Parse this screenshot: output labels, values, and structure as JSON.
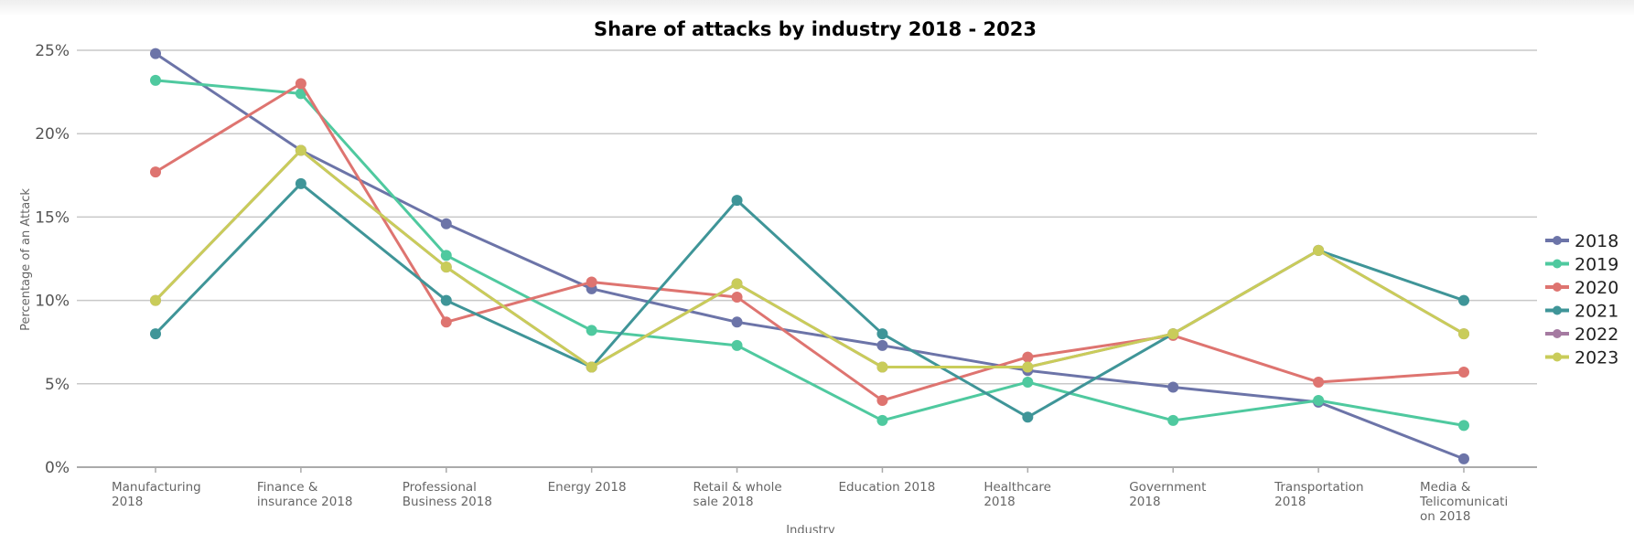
{
  "chart_data": {
    "type": "line",
    "title": "Share of attacks by industry 2018 - 2023",
    "xlabel": "Industry",
    "ylabel": "Percentage of an Attack",
    "ylim": [
      0,
      25
    ],
    "yticks": [
      "0%",
      "5%",
      "10%",
      "15%",
      "20%",
      "25%"
    ],
    "grid": true,
    "legend_position": "right",
    "categories": [
      [
        "Manufacturing",
        "2018"
      ],
      [
        "Finance &",
        "insurance 2018"
      ],
      [
        "Professional",
        "Business  2018"
      ],
      [
        "Energy 2018"
      ],
      [
        "Retail & whole",
        "sale  2018"
      ],
      [
        "Education 2018"
      ],
      [
        "Healthcare",
        "2018"
      ],
      [
        "Government",
        "2018"
      ],
      [
        "Transportation",
        "2018"
      ],
      [
        "Media &",
        "Telicomunicati",
        "on 2018"
      ]
    ],
    "series": [
      {
        "name": "2018",
        "color": "#6c74a8",
        "values": [
          24.8,
          19.0,
          14.6,
          10.7,
          8.7,
          7.3,
          5.8,
          4.8,
          3.9,
          0.5
        ]
      },
      {
        "name": "2019",
        "color": "#4fc99f",
        "values": [
          23.2,
          22.4,
          12.7,
          8.2,
          7.3,
          2.8,
          5.1,
          2.8,
          4.0,
          2.5
        ]
      },
      {
        "name": "2020",
        "color": "#de7470",
        "values": [
          17.7,
          23.0,
          8.7,
          11.1,
          10.2,
          4.0,
          6.6,
          7.9,
          5.1,
          5.7
        ]
      },
      {
        "name": "2021",
        "color": "#3f9598",
        "values": [
          8.0,
          17.0,
          10.0,
          6.0,
          16.0,
          8.0,
          3.0,
          8.0,
          13.0,
          10.0
        ]
      },
      {
        "name": "2022",
        "color": "#a57aa1",
        "values": [
          10.0,
          19.0,
          12.0,
          6.0,
          11.0,
          6.0,
          6.0,
          8.0,
          13.0,
          8.0
        ]
      },
      {
        "name": "2023",
        "color": "#c9cc5a",
        "values": [
          10.0,
          19.0,
          12.0,
          6.0,
          11.0,
          6.0,
          6.0,
          8.0,
          13.0,
          8.0
        ]
      }
    ]
  }
}
